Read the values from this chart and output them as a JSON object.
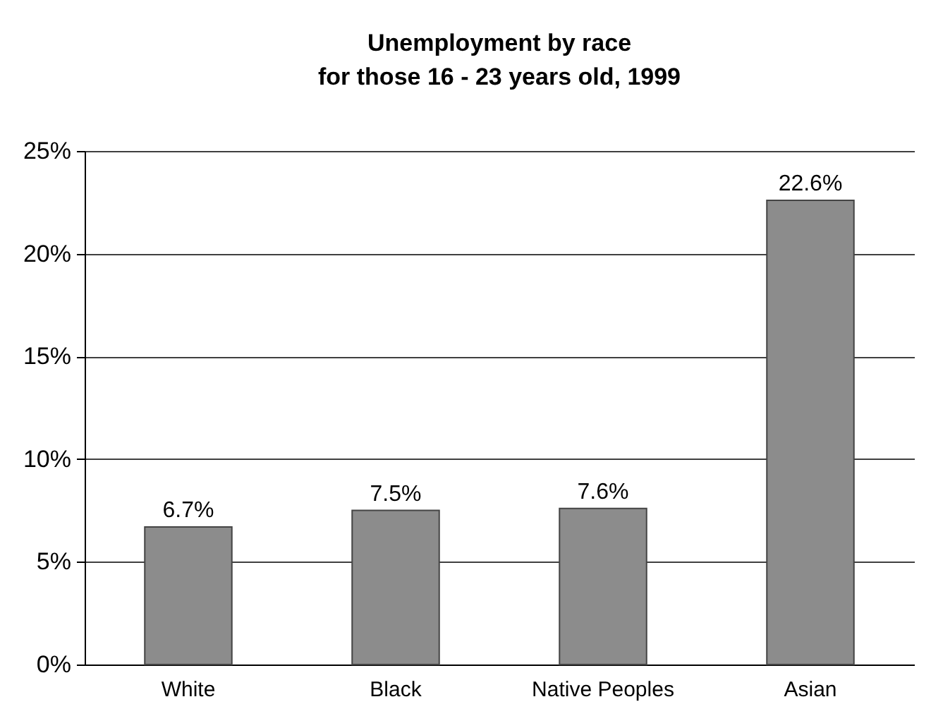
{
  "chart_data": {
    "type": "bar",
    "title": [
      "Unemployment by race",
      "for those 16 - 23 years old, 1999"
    ],
    "categories": [
      "White",
      "Black",
      "Native Peoples",
      "Asian"
    ],
    "values": [
      6.7,
      7.5,
      7.6,
      22.6
    ],
    "value_labels": [
      "6.7%",
      "7.5%",
      "7.6%",
      "22.6%"
    ],
    "color": "#8c8c8c",
    "ylim": [
      0,
      25
    ],
    "yticks": [
      {
        "value": 0,
        "label": "0%"
      },
      {
        "value": 5,
        "label": "5%"
      },
      {
        "value": 10,
        "label": "10%"
      },
      {
        "value": 15,
        "label": "15%"
      },
      {
        "value": 20,
        "label": "20%"
      },
      {
        "value": 25,
        "label": "25%"
      }
    ],
    "grid": "y"
  }
}
